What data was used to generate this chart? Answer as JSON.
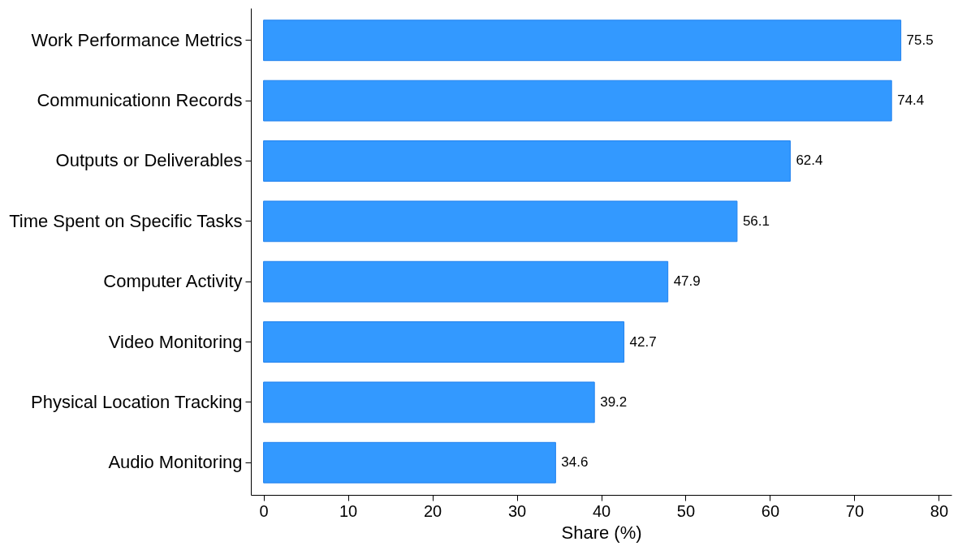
{
  "chart_data": {
    "type": "bar",
    "orientation": "horizontal",
    "xlabel": "Share (%)",
    "categories": [
      "Work Performance Metrics",
      "Communicationn Records",
      "Outputs or Deliverables",
      "Time Spent on Specific Tasks",
      "Computer Activity",
      "Video Monitoring",
      "Physical Location Tracking",
      "Audio Monitoring"
    ],
    "values": [
      75.5,
      74.4,
      62.4,
      56.1,
      47.9,
      42.7,
      39.2,
      34.6
    ],
    "color": "#3399ff",
    "xlim": [
      -1.5,
      81.5
    ],
    "xticks": [
      0,
      10,
      20,
      30,
      40,
      50,
      60,
      70,
      80
    ],
    "data_labels": true,
    "grid": false
  }
}
